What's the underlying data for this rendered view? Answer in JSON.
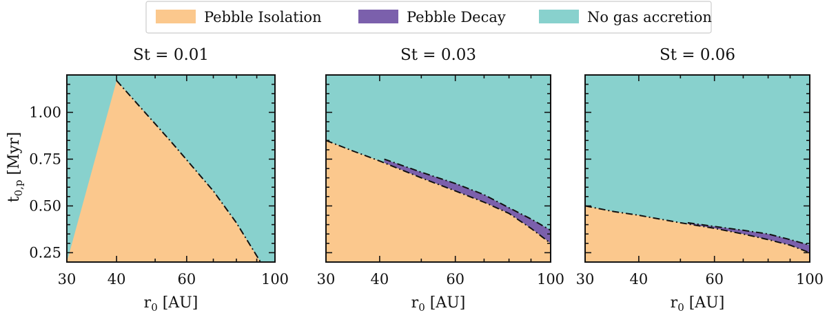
{
  "chart_data": {
    "type": "area",
    "legend": {
      "placement": "top-center",
      "entries": [
        {
          "label": "Pebble Isolation",
          "color": "#fbc88d"
        },
        {
          "label": "Pebble Decay",
          "color": "#7b60ac"
        },
        {
          "label": "No gas accretion",
          "color": "#88d1cd"
        }
      ]
    },
    "shared": {
      "xlabel": "r0 [AU]",
      "xlabel_base": "r",
      "xlabel_sub": "0",
      "xlabel_unit": " [AU]",
      "ylabel": "t0,p [Myr]",
      "ylabel_base": "t",
      "ylabel_sub": "0,p",
      "ylabel_unit": " [Myr]",
      "xscale": "log",
      "xlim": [
        30,
        100
      ],
      "ylim": [
        0.2,
        1.2
      ],
      "xticks": [
        30,
        40,
        60,
        100
      ],
      "xtick_labels": [
        "30",
        "40",
        "60",
        "100"
      ],
      "yticks": [
        0.25,
        0.5,
        0.75,
        1.0
      ],
      "ytick_labels": [
        "0.25",
        "0.50",
        "0.75",
        "1.00"
      ],
      "boundary_style": "dash-dot"
    },
    "panels": [
      {
        "title": "St = 0.01",
        "isolation_boundary": {
          "x": [
            40,
            55,
            70,
            80,
            92
          ],
          "y": [
            1.17,
            0.84,
            0.58,
            0.41,
            0.2
          ]
        },
        "decay_boundary": null
      },
      {
        "title": "St = 0.03",
        "isolation_boundary": {
          "x": [
            30,
            35,
            40,
            50,
            60,
            70,
            80,
            90,
            100
          ],
          "y": [
            0.85,
            0.79,
            0.74,
            0.65,
            0.58,
            0.52,
            0.46,
            0.38,
            0.3
          ]
        },
        "decay_boundary": {
          "x": [
            41,
            50,
            60,
            70,
            80,
            90,
            100
          ],
          "y": [
            0.75,
            0.68,
            0.62,
            0.56,
            0.49,
            0.43,
            0.37
          ]
        }
      },
      {
        "title": "St = 0.06",
        "isolation_boundary": {
          "x": [
            30,
            35,
            40,
            50,
            60,
            70,
            80,
            90,
            100
          ],
          "y": [
            0.5,
            0.47,
            0.45,
            0.41,
            0.38,
            0.35,
            0.32,
            0.29,
            0.25
          ]
        },
        "decay_boundary": {
          "x": [
            52,
            60,
            70,
            80,
            90,
            100
          ],
          "y": [
            0.41,
            0.39,
            0.37,
            0.35,
            0.32,
            0.29
          ]
        }
      }
    ]
  }
}
